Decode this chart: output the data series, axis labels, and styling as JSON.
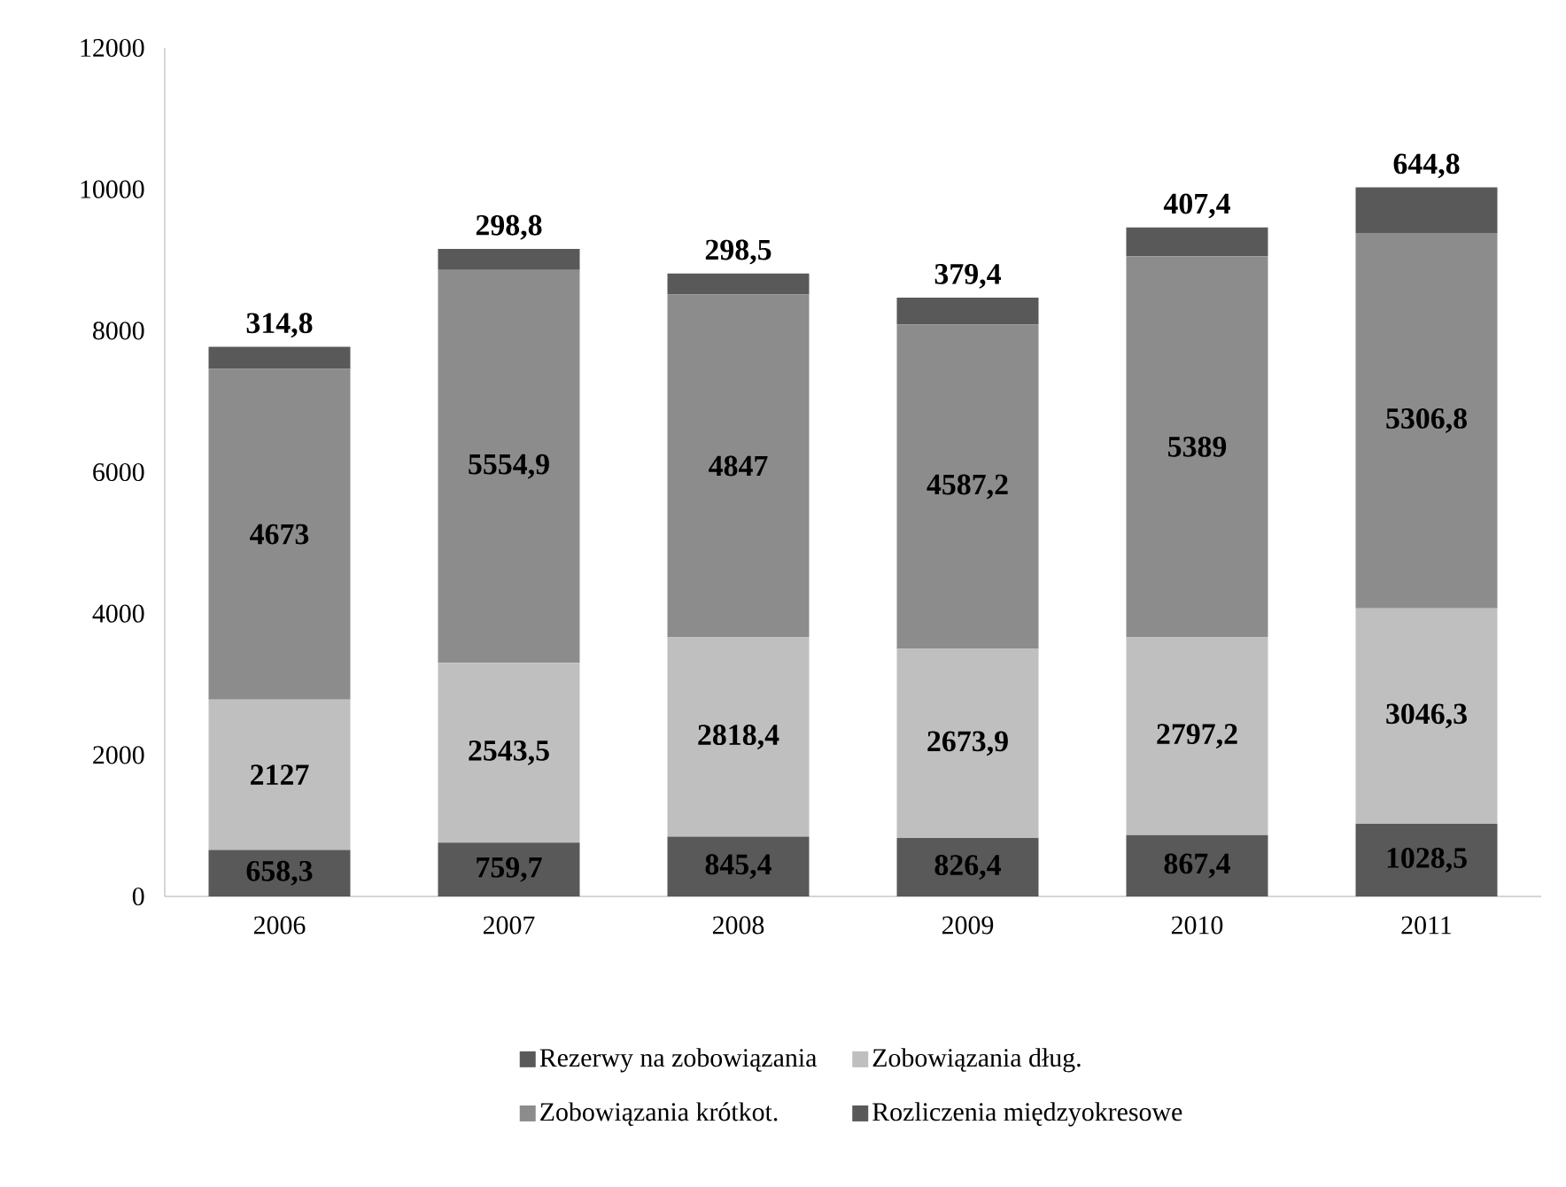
{
  "chart_data": {
    "type": "bar",
    "stacked": true,
    "categories": [
      "2006",
      "2007",
      "2008",
      "2009",
      "2010",
      "2011"
    ],
    "ylim": [
      0,
      12000
    ],
    "yticks": [
      0,
      2000,
      4000,
      6000,
      8000,
      10000,
      12000
    ],
    "legend": "bottom",
    "grid": false,
    "series": [
      {
        "name": "Rezerwy na zobowiązania",
        "color": "#595959",
        "values": [
          658.3,
          759.7,
          845.4,
          826.4,
          867.4,
          1028.5
        ],
        "value_labels": [
          "658,3",
          "759,7",
          "845,4",
          "826,4",
          "867,4",
          "1028,5"
        ]
      },
      {
        "name": "Zobowiązania dług.",
        "color": "#bfbfbf",
        "values": [
          2127,
          2543.5,
          2818.4,
          2673.9,
          2797.2,
          3046.3
        ],
        "value_labels": [
          "2127",
          "2543,5",
          "2818,4",
          "2673,9",
          "2797,2",
          "3046,3"
        ]
      },
      {
        "name": "Zobowiązania krótkot.",
        "color": "#8c8c8c",
        "values": [
          4673,
          5554.9,
          4847,
          4587.2,
          5389,
          5306.8
        ],
        "value_labels": [
          "4673",
          "5554,9",
          "4847",
          "4587,2",
          "5389",
          "5306,8"
        ]
      },
      {
        "name": "Rozliczenia międzyokresowe",
        "color": "#595959",
        "values": [
          314.8,
          298.8,
          298.5,
          379.4,
          407.4,
          644.8
        ],
        "value_labels": [
          "314,8",
          "298,8",
          "298,5",
          "379,4",
          "407,4",
          "644,8"
        ]
      }
    ]
  }
}
